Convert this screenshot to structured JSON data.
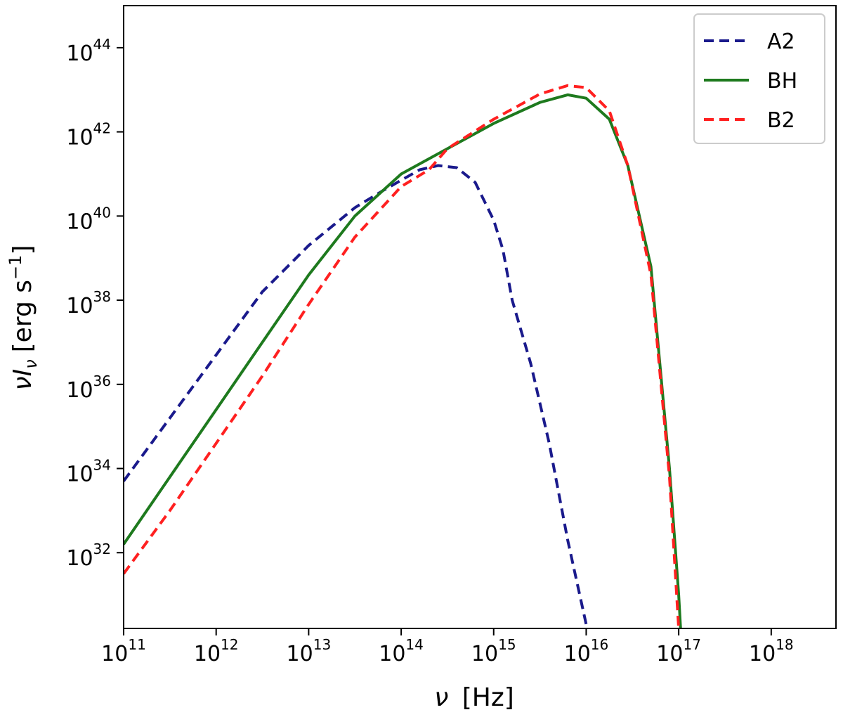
{
  "chart_data": {
    "type": "line",
    "xscale": "log",
    "yscale": "log",
    "xlim_exp": [
      11,
      18.7
    ],
    "ylim_exp": [
      30.2,
      45.0
    ],
    "x_ticks": [
      {
        "base": "10",
        "exp": "11",
        "value": 11
      },
      {
        "base": "10",
        "exp": "12",
        "value": 12
      },
      {
        "base": "10",
        "exp": "13",
        "value": 13
      },
      {
        "base": "10",
        "exp": "14",
        "value": 14
      },
      {
        "base": "10",
        "exp": "15",
        "value": 15
      },
      {
        "base": "10",
        "exp": "16",
        "value": 16
      },
      {
        "base": "10",
        "exp": "17",
        "value": 17
      },
      {
        "base": "10",
        "exp": "18",
        "value": 18
      }
    ],
    "y_ticks": [
      {
        "base": "10",
        "exp": "32",
        "value": 32
      },
      {
        "base": "10",
        "exp": "34",
        "value": 34
      },
      {
        "base": "10",
        "exp": "36",
        "value": 36
      },
      {
        "base": "10",
        "exp": "38",
        "value": 38
      },
      {
        "base": "10",
        "exp": "40",
        "value": 40
      },
      {
        "base": "10",
        "exp": "42",
        "value": 42
      },
      {
        "base": "10",
        "exp": "44",
        "value": 44
      }
    ],
    "xlabel": {
      "symbol": "ν",
      "unit": "[Hz]"
    },
    "ylabel": {
      "symbol": "νI",
      "sub": "ν",
      "unit_pre": "[erg s",
      "unit_sup": "−1",
      "unit_post": "]"
    },
    "legend_position": "top-right",
    "series": [
      {
        "name": "A2",
        "color": "#1a1a8c",
        "style": "dashed",
        "x_log": [
          11.0,
          11.5,
          12.0,
          12.5,
          13.0,
          13.5,
          13.8,
          14.0,
          14.2,
          14.4,
          14.6,
          14.8,
          15.0,
          15.1,
          15.2,
          15.4,
          15.6,
          15.8,
          16.0
        ],
        "y_log": [
          33.7,
          35.2,
          36.7,
          38.2,
          39.3,
          40.2,
          40.6,
          40.85,
          41.1,
          41.2,
          41.15,
          40.8,
          39.9,
          39.2,
          38.0,
          36.5,
          34.6,
          32.3,
          30.3
        ]
      },
      {
        "name": "BH",
        "color": "#1e7a1e",
        "style": "solid",
        "x_log": [
          11.0,
          11.5,
          12.0,
          12.5,
          13.0,
          13.5,
          14.0,
          14.5,
          15.0,
          15.5,
          15.8,
          16.0,
          16.25,
          16.45,
          16.7,
          16.9,
          17.0,
          17.02
        ],
        "y_log": [
          32.2,
          33.8,
          35.4,
          37.0,
          38.6,
          40.0,
          41.0,
          41.6,
          42.2,
          42.7,
          42.88,
          42.8,
          42.3,
          41.2,
          38.8,
          34.0,
          31.0,
          30.2
        ]
      },
      {
        "name": "B2",
        "color": "#ff2020",
        "style": "dashed",
        "x_log": [
          11.0,
          11.5,
          12.0,
          12.5,
          13.0,
          13.5,
          14.0,
          14.3,
          14.5,
          15.0,
          15.5,
          15.8,
          16.0,
          16.25,
          16.45,
          16.7,
          16.9,
          17.0
        ],
        "y_log": [
          31.5,
          33.0,
          34.6,
          36.2,
          37.9,
          39.5,
          40.7,
          41.1,
          41.6,
          42.3,
          42.9,
          43.1,
          43.05,
          42.5,
          41.2,
          38.6,
          33.8,
          30.2
        ]
      }
    ]
  }
}
